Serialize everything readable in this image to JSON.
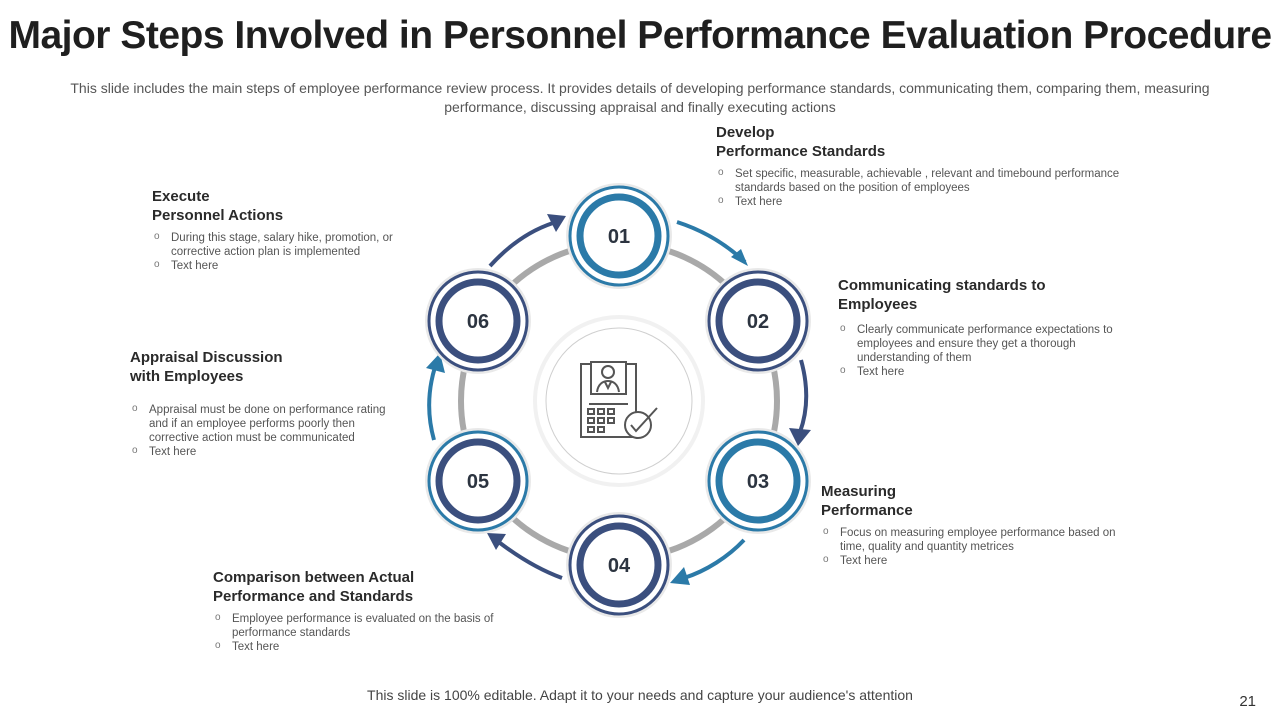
{
  "title": "Major Steps Involved in Personnel Performance Evaluation Procedure",
  "subtitle": "This slide includes the main steps of employee performance review process. It provides details of developing performance standards, communicating them, comparing  them, measuring performance, discussing appraisal and finally  executing actions",
  "steps": [
    {
      "number": "01",
      "heading_line1": "Develop",
      "heading_line2": "Performance Standards",
      "bullets": [
        "Set specific, measurable, achievable , relevant and timebound performance standards based on the position of employees",
        "Text here"
      ]
    },
    {
      "number": "02",
      "heading_line1": "Communicating standards to",
      "heading_line2": "Employees",
      "bullets": [
        "Clearly communicate performance expectations to employees and ensure they get a thorough understanding of them",
        "Text here"
      ]
    },
    {
      "number": "03",
      "heading_line1": "Measuring",
      "heading_line2": "Performance",
      "bullets": [
        "Focus on measuring employee performance based on time, quality and quantity metrices",
        "Text here"
      ]
    },
    {
      "number": "04",
      "heading_line1": "Comparison between Actual",
      "heading_line2": "Performance and Standards",
      "bullets": [
        "Employee performance is evaluated on the basis of performance standards",
        "Text here"
      ]
    },
    {
      "number": "05",
      "heading_line1": "Appraisal Discussion",
      "heading_line2": "with Employees",
      "bullets": [
        "Appraisal must be done on performance rating and if an employee performs poorly then corrective action must be communicated",
        "Text here"
      ]
    },
    {
      "number": "06",
      "heading_line1": "Execute",
      "heading_line2": "Personnel Actions",
      "bullets": [
        "During this stage, salary hike, promotion, or corrective action plan is implemented",
        "Text here"
      ]
    }
  ],
  "center_icon": "employee-evaluation-icon",
  "colors": {
    "teal": "#2b7aa8",
    "navy": "#3b4f7e",
    "ring": "#a9a9a9"
  },
  "footer": "This slide is 100% editable.  Adapt it to your needs and capture your audience's attention",
  "page_number": "21"
}
